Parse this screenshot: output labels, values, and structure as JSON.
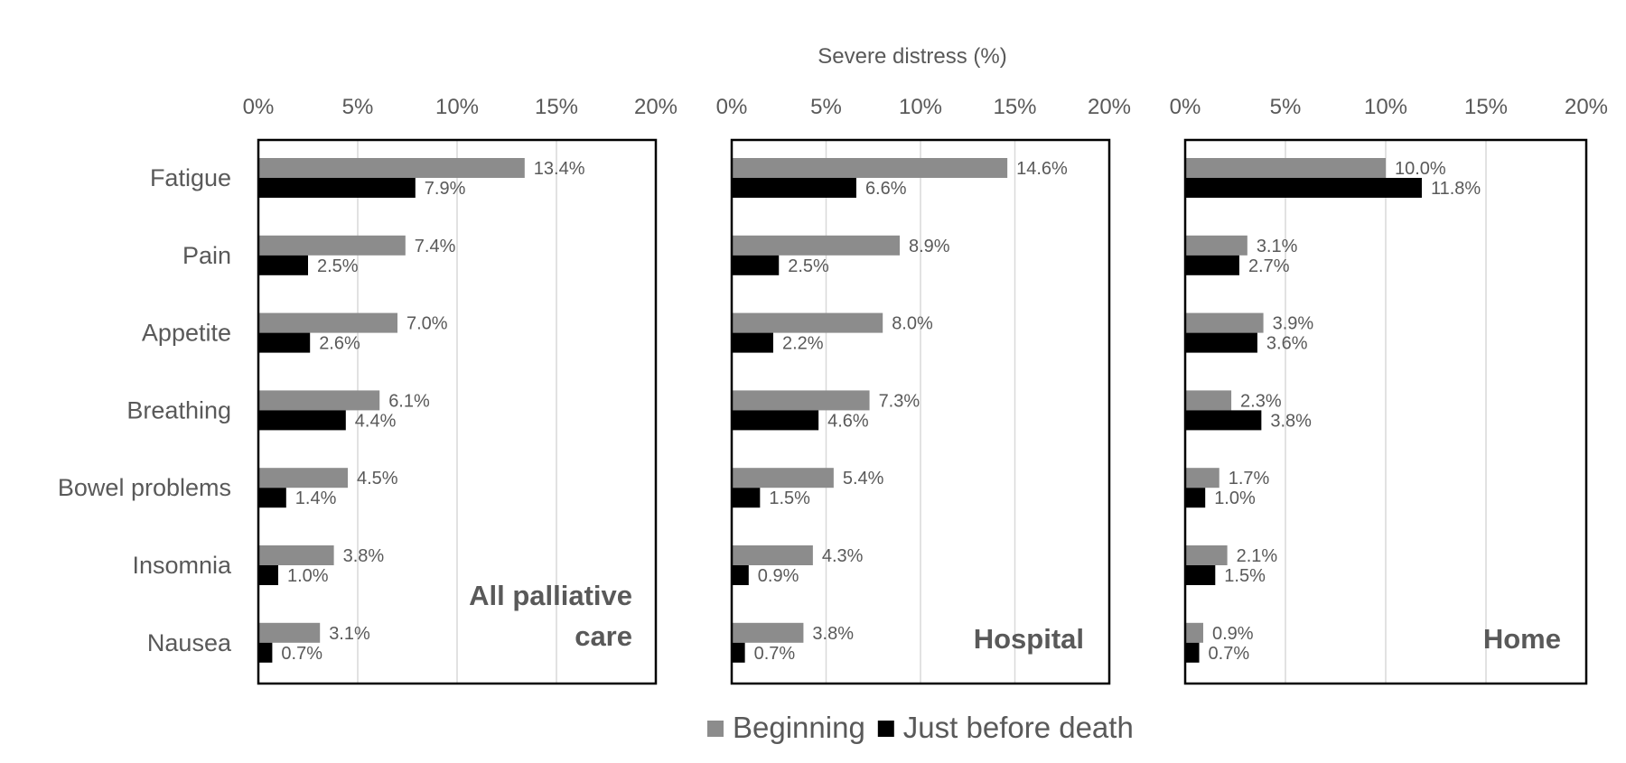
{
  "chart_data": [
    {
      "type": "bar",
      "orientation": "horizontal",
      "panel_label": "All palliative care",
      "categories": [
        "Fatigue",
        "Pain",
        "Appetite",
        "Breathing",
        "Bowel problems",
        "Insomnia",
        "Nausea"
      ],
      "series": [
        {
          "name": "Beginning",
          "values": [
            13.4,
            7.4,
            7.0,
            6.1,
            4.5,
            3.8,
            3.1
          ],
          "labels": [
            "13.4%",
            "7.4%",
            "7.0%",
            "6.1%",
            "4.5%",
            "3.8%",
            "3.1%"
          ]
        },
        {
          "name": "Just before death",
          "values": [
            7.9,
            2.5,
            2.6,
            4.4,
            1.4,
            1.0,
            0.7
          ],
          "labels": [
            "7.9%",
            "2.5%",
            "2.6%",
            "4.4%",
            "1.4%",
            "1.0%",
            "0.7%"
          ]
        }
      ],
      "xlim": [
        0,
        20
      ],
      "xticks": [
        "0%",
        "5%",
        "10%",
        "15%",
        "20%"
      ],
      "grid": true
    },
    {
      "type": "bar",
      "orientation": "horizontal",
      "panel_label": "Hospital",
      "categories": [
        "Fatigue",
        "Pain",
        "Appetite",
        "Breathing",
        "Bowel problems",
        "Insomnia",
        "Nausea"
      ],
      "series": [
        {
          "name": "Beginning",
          "values": [
            14.6,
            8.9,
            8.0,
            7.3,
            5.4,
            4.3,
            3.8
          ],
          "labels": [
            "14.6%",
            "8.9%",
            "8.0%",
            "7.3%",
            "5.4%",
            "4.3%",
            "3.8%"
          ]
        },
        {
          "name": "Just before death",
          "values": [
            6.6,
            2.5,
            2.2,
            4.6,
            1.5,
            0.9,
            0.7
          ],
          "labels": [
            "6.6%",
            "2.5%",
            "2.2%",
            "4.6%",
            "1.5%",
            "0.9%",
            "0.7%"
          ]
        }
      ],
      "xlim": [
        0,
        20
      ],
      "xticks": [
        "0%",
        "5%",
        "10%",
        "15%",
        "20%"
      ],
      "grid": true
    },
    {
      "type": "bar",
      "orientation": "horizontal",
      "panel_label": "Home",
      "categories": [
        "Fatigue",
        "Pain",
        "Appetite",
        "Breathing",
        "Bowel problems",
        "Insomnia",
        "Nausea"
      ],
      "series": [
        {
          "name": "Beginning",
          "values": [
            10.0,
            3.1,
            3.9,
            2.3,
            1.7,
            2.1,
            0.9
          ],
          "labels": [
            "10.0%",
            "3.1%",
            "3.9%",
            "2.3%",
            "1.7%",
            "2.1%",
            "0.9%"
          ]
        },
        {
          "name": "Just before death",
          "values": [
            11.8,
            2.7,
            3.6,
            3.8,
            1.0,
            1.5,
            0.7
          ],
          "labels": [
            "11.8%",
            "2.7%",
            "3.6%",
            "3.8%",
            "1.0%",
            "1.5%",
            "0.7%"
          ]
        }
      ],
      "xlim": [
        0,
        20
      ],
      "xticks": [
        "0%",
        "5%",
        "10%",
        "15%",
        "20%"
      ],
      "grid": true
    }
  ],
  "axis_title": "Severe distress (%)",
  "legend": {
    "placement": "bottom",
    "items": [
      {
        "label": "Beginning",
        "color": "#8c8c8c"
      },
      {
        "label": "Just before death",
        "color": "#000000"
      }
    ]
  },
  "colors": {
    "beginning": "#8c8c8c",
    "just_before_death": "#000000",
    "text": "#595959",
    "grid": "#d9d9d9"
  }
}
